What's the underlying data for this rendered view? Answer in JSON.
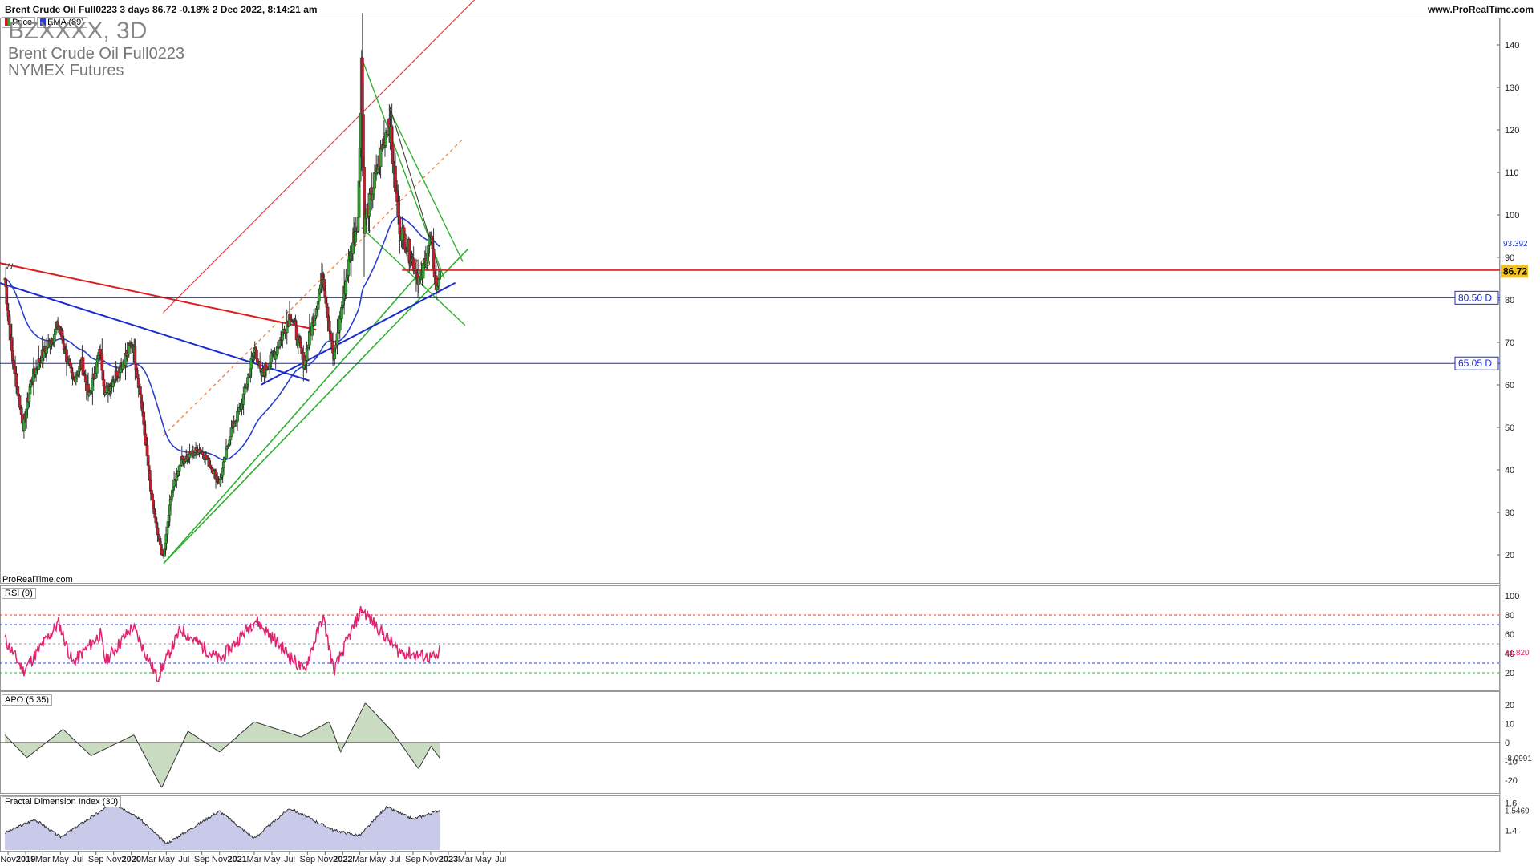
{
  "header": {
    "title": "Brent Crude Oil Full0223 3 days 86.72 -0.18% 2 Dec 2022, 8:14:21 am",
    "url": "www.ProRealTime.com"
  },
  "legend": {
    "price": "Price",
    "ema": "EMA (89)"
  },
  "instrument": {
    "symbol": "BZXXXX, 3D",
    "name": "Brent Crude Oil Full0223",
    "exchange": "NYMEX Futures"
  },
  "watermark": "ProRealTime.com",
  "colors": {
    "up": "#2fa52f",
    "down": "#d0182c",
    "ema": "#2a3fd0",
    "rsi": "#e0236e",
    "support": "#1a2bd0",
    "resistance": "#e01b1b",
    "channel": "#2fb02f",
    "axis_text": "#222222",
    "grid": "#cccccc"
  },
  "chart_data": [
    {
      "type": "candlestick",
      "title": "Brent Crude Oil Full0223",
      "timeframe": "3 days",
      "last": 86.72,
      "change_pct": "-0.18%",
      "ylim": [
        15,
        145
      ],
      "yticks": [
        20,
        30,
        40,
        50,
        60,
        70,
        80,
        90,
        100,
        110,
        120,
        130,
        140
      ],
      "xticks": [
        "Nov",
        "2019",
        "Mar",
        "May",
        "Jul",
        "Sep",
        "Nov",
        "2020",
        "Mar",
        "May",
        "Jul",
        "Sep",
        "Nov",
        "2021",
        "Mar",
        "May",
        "Jul",
        "Sep",
        "Nov",
        "2022",
        "Mar",
        "May",
        "Jul",
        "Sep",
        "Nov",
        "2023",
        "Mar",
        "May",
        "Jul"
      ],
      "close_path": [
        {
          "date": "2018-10-21",
          "close": 85
        },
        {
          "date": "2018-11-15",
          "close": 67
        },
        {
          "date": "2018-12-24",
          "close": 50
        },
        {
          "date": "2019-01-20",
          "close": 61
        },
        {
          "date": "2019-02-20",
          "close": 66
        },
        {
          "date": "2019-04-25",
          "close": 74
        },
        {
          "date": "2019-06-12",
          "close": 61
        },
        {
          "date": "2019-07-15",
          "close": 65
        },
        {
          "date": "2019-08-07",
          "close": 57
        },
        {
          "date": "2019-09-16",
          "close": 68
        },
        {
          "date": "2019-10-03",
          "close": 58
        },
        {
          "date": "2019-11-15",
          "close": 63
        },
        {
          "date": "2020-01-06",
          "close": 70
        },
        {
          "date": "2020-02-03",
          "close": 57
        },
        {
          "date": "2020-03-10",
          "close": 34
        },
        {
          "date": "2020-03-31",
          "close": 25
        },
        {
          "date": "2020-04-21",
          "close": 19
        },
        {
          "date": "2020-05-20",
          "close": 35
        },
        {
          "date": "2020-06-20",
          "close": 42
        },
        {
          "date": "2020-08-25",
          "close": 45
        },
        {
          "date": "2020-10-01",
          "close": 41
        },
        {
          "date": "2020-11-02",
          "close": 37
        },
        {
          "date": "2020-12-10",
          "close": 49
        },
        {
          "date": "2021-01-15",
          "close": 55
        },
        {
          "date": "2021-03-05",
          "close": 69
        },
        {
          "date": "2021-03-24",
          "close": 62
        },
        {
          "date": "2021-05-15",
          "close": 68
        },
        {
          "date": "2021-07-05",
          "close": 77
        },
        {
          "date": "2021-08-20",
          "close": 65
        },
        {
          "date": "2021-10-25",
          "close": 86
        },
        {
          "date": "2021-12-01",
          "close": 66
        },
        {
          "date": "2022-01-25",
          "close": 90
        },
        {
          "date": "2022-02-24",
          "close": 100
        },
        {
          "date": "2022-03-07",
          "close": 137
        },
        {
          "date": "2022-03-16",
          "close": 98
        },
        {
          "date": "2022-04-12",
          "close": 105
        },
        {
          "date": "2022-06-10",
          "close": 123
        },
        {
          "date": "2022-07-14",
          "close": 98
        },
        {
          "date": "2022-08-16",
          "close": 92
        },
        {
          "date": "2022-09-27",
          "close": 84
        },
        {
          "date": "2022-10-31",
          "close": 95
        },
        {
          "date": "2022-11-22",
          "close": 82
        },
        {
          "date": "2022-12-02",
          "close": 86.72
        }
      ],
      "ema_89": {
        "name": "EMA (89)",
        "last": 93.392
      },
      "horizontal_levels": [
        {
          "value": 80.5,
          "label": "80.50 D"
        },
        {
          "value": 65.05,
          "label": "65.05 D"
        },
        {
          "value": 87.0,
          "label": "87.00"
        }
      ],
      "last_label": "86.72",
      "ema_label": "93.392",
      "annotation_w": "W"
    },
    {
      "type": "line",
      "title": "RSI (9)",
      "ylim": [
        0,
        100
      ],
      "yticks": [
        20,
        40,
        60,
        80,
        100
      ],
      "levels": [
        80,
        70,
        50,
        30,
        20
      ],
      "last": 41.82,
      "last_label": "41.820",
      "path": [
        {
          "date": "2018-10-21",
          "value": 55
        },
        {
          "date": "2018-12-24",
          "value": 22
        },
        {
          "date": "2019-04-25",
          "value": 72
        },
        {
          "date": "2019-06-12",
          "value": 30
        },
        {
          "date": "2019-09-16",
          "value": 60
        },
        {
          "date": "2019-10-03",
          "value": 32
        },
        {
          "date": "2020-01-06",
          "value": 68
        },
        {
          "date": "2020-03-31",
          "value": 15
        },
        {
          "date": "2020-06-20",
          "value": 65
        },
        {
          "date": "2020-11-02",
          "value": 33
        },
        {
          "date": "2021-03-05",
          "value": 75
        },
        {
          "date": "2021-08-20",
          "value": 22
        },
        {
          "date": "2021-10-25",
          "value": 78
        },
        {
          "date": "2021-12-01",
          "value": 22
        },
        {
          "date": "2022-03-07",
          "value": 86
        },
        {
          "date": "2022-07-14",
          "value": 42
        },
        {
          "date": "2022-11-22",
          "value": 35
        },
        {
          "date": "2022-12-02",
          "value": 41.82
        }
      ]
    },
    {
      "type": "area",
      "title": "APO (5 35)",
      "ylim": [
        -26,
        28
      ],
      "yticks": [
        20,
        10,
        0,
        -10,
        -20
      ],
      "last": -8.0991,
      "last_label": "-8.0991",
      "path": [
        {
          "date": "2018-10-21",
          "value": 4
        },
        {
          "date": "2019-01-05",
          "value": -8
        },
        {
          "date": "2019-05-10",
          "value": 7
        },
        {
          "date": "2019-08-15",
          "value": -7
        },
        {
          "date": "2020-01-10",
          "value": 4
        },
        {
          "date": "2020-04-15",
          "value": -24
        },
        {
          "date": "2020-07-15",
          "value": 6
        },
        {
          "date": "2020-11-01",
          "value": -5
        },
        {
          "date": "2021-03-01",
          "value": 11
        },
        {
          "date": "2021-08-10",
          "value": 3
        },
        {
          "date": "2021-11-15",
          "value": 11
        },
        {
          "date": "2021-12-25",
          "value": -5
        },
        {
          "date": "2022-03-20",
          "value": 21
        },
        {
          "date": "2022-06-20",
          "value": 6
        },
        {
          "date": "2022-09-20",
          "value": -14
        },
        {
          "date": "2022-11-02",
          "value": -2
        },
        {
          "date": "2022-12-02",
          "value": -8.0991
        }
      ]
    },
    {
      "type": "area",
      "title": "Fractal Dimension Index (30)",
      "ylim": [
        1.29,
        1.66
      ],
      "yticks": [
        1.6,
        1.4
      ],
      "last": 1.5469,
      "last_label": "1.5469",
      "path": [
        {
          "date": "2018-10-21",
          "value": 1.38
        },
        {
          "date": "2019-02-01",
          "value": 1.48
        },
        {
          "date": "2019-05-01",
          "value": 1.35
        },
        {
          "date": "2019-11-01",
          "value": 1.6
        },
        {
          "date": "2020-02-01",
          "value": 1.48
        },
        {
          "date": "2020-05-01",
          "value": 1.3
        },
        {
          "date": "2020-11-01",
          "value": 1.54
        },
        {
          "date": "2021-03-01",
          "value": 1.34
        },
        {
          "date": "2021-07-01",
          "value": 1.56
        },
        {
          "date": "2021-12-01",
          "value": 1.4
        },
        {
          "date": "2022-03-01",
          "value": 1.36
        },
        {
          "date": "2022-06-01",
          "value": 1.57
        },
        {
          "date": "2022-09-01",
          "value": 1.48
        },
        {
          "date": "2022-12-02",
          "value": 1.5469
        }
      ]
    }
  ]
}
